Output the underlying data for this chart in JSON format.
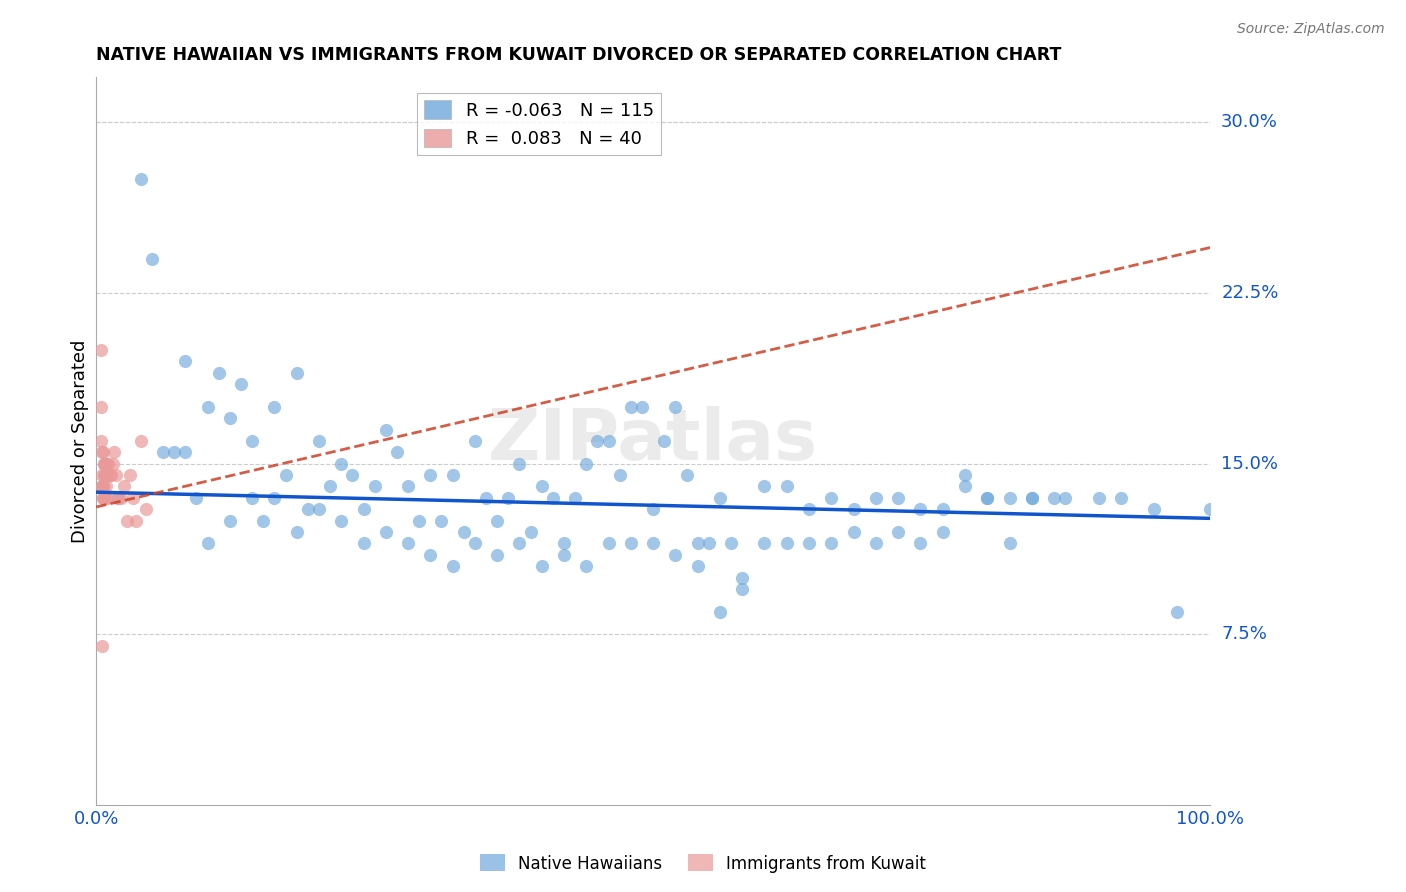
{
  "title": "NATIVE HAWAIIAN VS IMMIGRANTS FROM KUWAIT DIVORCED OR SEPARATED CORRELATION CHART",
  "source": "Source: ZipAtlas.com",
  "ylabel": "Divorced or Separated",
  "legend_blue_R": "-0.063",
  "legend_blue_N": "115",
  "legend_pink_R": "0.083",
  "legend_pink_N": "40",
  "xlim": [
    0.0,
    1.0
  ],
  "ylim": [
    0.0,
    0.32
  ],
  "ytick_vals": [
    0.075,
    0.15,
    0.225,
    0.3
  ],
  "ytick_labels": [
    "7.5%",
    "15.0%",
    "22.5%",
    "30.0%"
  ],
  "xtick_labels": [
    "0.0%",
    "100.0%"
  ],
  "xticks": [
    0.0,
    1.0
  ],
  "watermark": "ZIPatlas",
  "blue_color": "#6fa8dc",
  "pink_color": "#ea9999",
  "trend_blue_color": "#1155cc",
  "trend_pink_color": "#cc4125",
  "background_color": "#ffffff",
  "grid_color": "#cccccc",
  "blue_scatter_x": [
    0.02,
    0.05,
    0.07,
    0.08,
    0.09,
    0.1,
    0.11,
    0.12,
    0.13,
    0.14,
    0.15,
    0.16,
    0.17,
    0.18,
    0.19,
    0.2,
    0.21,
    0.22,
    0.23,
    0.24,
    0.25,
    0.26,
    0.27,
    0.28,
    0.29,
    0.3,
    0.31,
    0.32,
    0.33,
    0.34,
    0.35,
    0.36,
    0.37,
    0.38,
    0.39,
    0.4,
    0.41,
    0.42,
    0.43,
    0.44,
    0.45,
    0.46,
    0.47,
    0.48,
    0.49,
    0.5,
    0.51,
    0.52,
    0.53,
    0.54,
    0.55,
    0.56,
    0.57,
    0.58,
    0.6,
    0.62,
    0.64,
    0.66,
    0.68,
    0.7,
    0.72,
    0.74,
    0.76,
    0.78,
    0.8,
    0.82,
    0.84,
    0.87,
    0.9,
    0.92,
    0.95,
    0.97,
    1.0,
    0.04,
    0.06,
    0.08,
    0.1,
    0.12,
    0.14,
    0.16,
    0.18,
    0.2,
    0.22,
    0.24,
    0.26,
    0.28,
    0.3,
    0.32,
    0.34,
    0.36,
    0.38,
    0.4,
    0.42,
    0.44,
    0.46,
    0.48,
    0.5,
    0.52,
    0.54,
    0.56,
    0.58,
    0.6,
    0.62,
    0.64,
    0.66,
    0.68,
    0.7,
    0.72,
    0.74,
    0.76,
    0.78,
    0.8,
    0.82,
    0.84,
    0.86
  ],
  "blue_scatter_y": [
    0.135,
    0.24,
    0.155,
    0.195,
    0.135,
    0.175,
    0.19,
    0.17,
    0.185,
    0.16,
    0.125,
    0.175,
    0.145,
    0.19,
    0.13,
    0.16,
    0.14,
    0.15,
    0.145,
    0.13,
    0.14,
    0.165,
    0.155,
    0.14,
    0.125,
    0.145,
    0.125,
    0.145,
    0.12,
    0.16,
    0.135,
    0.125,
    0.135,
    0.15,
    0.12,
    0.14,
    0.135,
    0.115,
    0.135,
    0.15,
    0.16,
    0.16,
    0.145,
    0.175,
    0.175,
    0.13,
    0.16,
    0.175,
    0.145,
    0.105,
    0.115,
    0.135,
    0.115,
    0.1,
    0.14,
    0.14,
    0.13,
    0.135,
    0.13,
    0.135,
    0.135,
    0.13,
    0.13,
    0.14,
    0.135,
    0.135,
    0.135,
    0.135,
    0.135,
    0.135,
    0.13,
    0.085,
    0.13,
    0.275,
    0.155,
    0.155,
    0.115,
    0.125,
    0.135,
    0.135,
    0.12,
    0.13,
    0.125,
    0.115,
    0.12,
    0.115,
    0.11,
    0.105,
    0.115,
    0.11,
    0.115,
    0.105,
    0.11,
    0.105,
    0.115,
    0.115,
    0.115,
    0.11,
    0.115,
    0.085,
    0.095,
    0.115,
    0.115,
    0.115,
    0.115,
    0.12,
    0.115,
    0.12,
    0.115,
    0.12,
    0.145,
    0.135,
    0.115,
    0.135,
    0.135
  ],
  "pink_scatter_x": [
    0.004,
    0.004,
    0.004,
    0.005,
    0.005,
    0.005,
    0.005,
    0.005,
    0.006,
    0.006,
    0.006,
    0.006,
    0.006,
    0.007,
    0.007,
    0.007,
    0.007,
    0.008,
    0.008,
    0.008,
    0.009,
    0.009,
    0.01,
    0.01,
    0.01,
    0.011,
    0.012,
    0.013,
    0.015,
    0.016,
    0.018,
    0.02,
    0.022,
    0.025,
    0.028,
    0.03,
    0.033,
    0.036,
    0.04,
    0.045
  ],
  "pink_scatter_y": [
    0.2,
    0.175,
    0.16,
    0.155,
    0.145,
    0.14,
    0.14,
    0.07,
    0.155,
    0.14,
    0.14,
    0.135,
    0.135,
    0.145,
    0.15,
    0.15,
    0.135,
    0.145,
    0.145,
    0.15,
    0.14,
    0.135,
    0.145,
    0.15,
    0.135,
    0.15,
    0.145,
    0.145,
    0.15,
    0.155,
    0.145,
    0.135,
    0.135,
    0.14,
    0.125,
    0.145,
    0.135,
    0.125,
    0.16,
    0.13
  ],
  "blue_trend_x0": 0.0,
  "blue_trend_x1": 1.0,
  "blue_trend_y0": 0.1375,
  "blue_trend_y1": 0.126,
  "pink_trend_x0": 0.0,
  "pink_trend_x1": 1.0,
  "pink_trend_y0": 0.131,
  "pink_trend_y1": 0.245
}
